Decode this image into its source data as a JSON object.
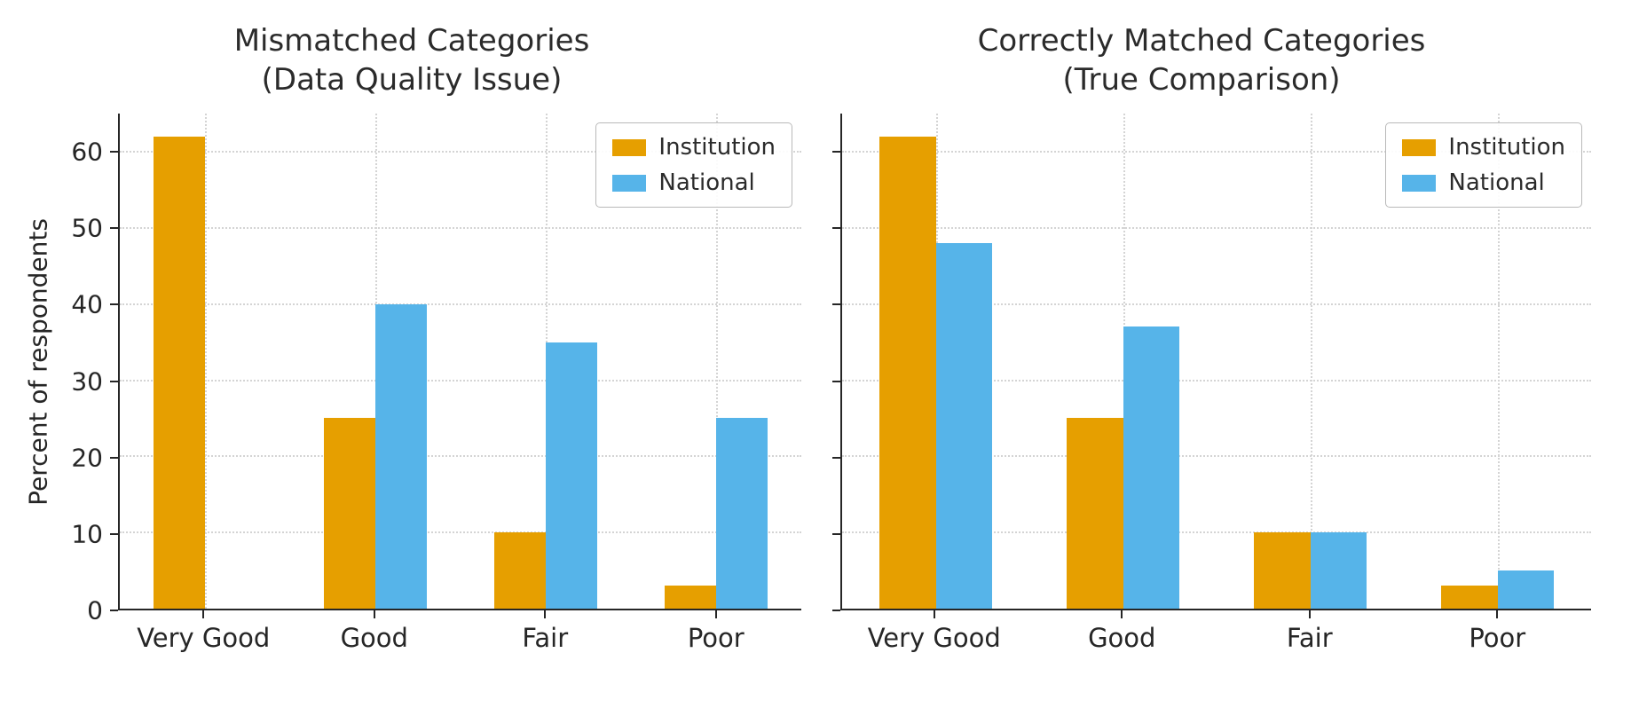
{
  "figure": {
    "background": "#ffffff",
    "text_color": "#262626"
  },
  "chart_data": [
    {
      "type": "bar",
      "title": "Mismatched Categories",
      "subtitle": "(Data Quality Issue)",
      "categories": [
        "Very Good",
        "Good",
        "Fair",
        "Poor"
      ],
      "series": [
        {
          "name": "Institution",
          "color": "#E69F00",
          "values": [
            62,
            25,
            10,
            3
          ]
        },
        {
          "name": "National",
          "color": "#56B4E9",
          "values": [
            0,
            40,
            35,
            25
          ]
        }
      ],
      "ylabel": "Percent of respondents",
      "xlabel": "",
      "ylim": [
        0,
        65
      ],
      "yticks": [
        0,
        10,
        20,
        30,
        40,
        50,
        60
      ],
      "ytick_labels": true,
      "grid": true,
      "legend": {
        "position": "top-right"
      }
    },
    {
      "type": "bar",
      "title": "Correctly Matched Categories",
      "subtitle": "(True Comparison)",
      "categories": [
        "Very Good",
        "Good",
        "Fair",
        "Poor"
      ],
      "series": [
        {
          "name": "Institution",
          "color": "#E69F00",
          "values": [
            62,
            25,
            10,
            3
          ]
        },
        {
          "name": "National",
          "color": "#56B4E9",
          "values": [
            48,
            37,
            10,
            5
          ]
        }
      ],
      "ylabel": "",
      "xlabel": "",
      "ylim": [
        0,
        65
      ],
      "yticks": [
        0,
        10,
        20,
        30,
        40,
        50,
        60
      ],
      "ytick_labels": false,
      "grid": true,
      "legend": {
        "position": "top-right"
      }
    }
  ]
}
